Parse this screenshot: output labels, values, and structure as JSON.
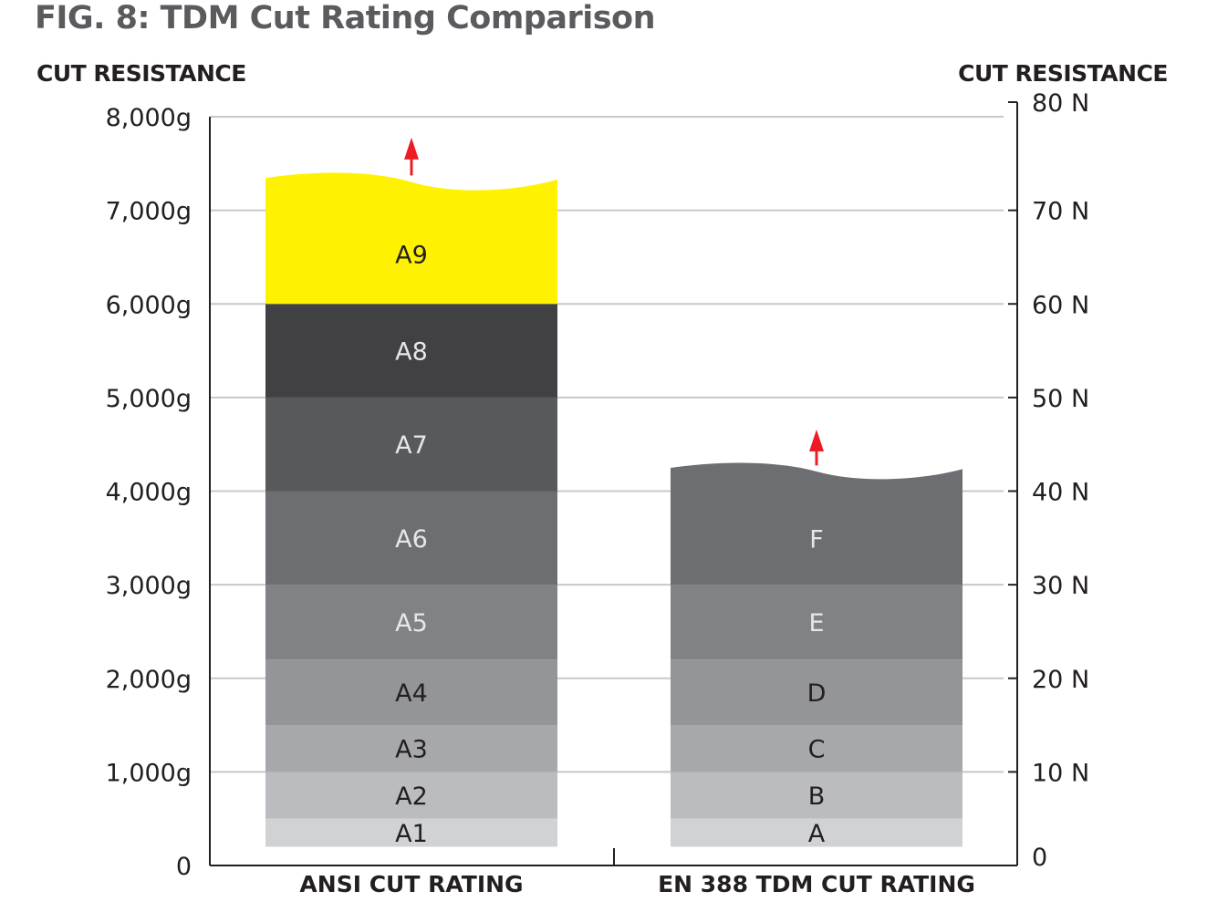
{
  "chart_data": {
    "type": "bar",
    "title": "FIG. 8: TDM Cut Rating Comparison",
    "left_axis": {
      "label": "CUT RESISTANCE",
      "unit": "g",
      "range": [
        0,
        8000
      ],
      "ticks": [
        0,
        1000,
        2000,
        3000,
        4000,
        5000,
        6000,
        7000,
        8000
      ],
      "tick_labels": [
        "0",
        "1,000g",
        "2,000g",
        "3,000g",
        "4,000g",
        "5,000g",
        "6,000g",
        "7,000g",
        "8,000g"
      ]
    },
    "right_axis": {
      "label": "CUT RESISTANCE",
      "unit": "N",
      "range": [
        0,
        80
      ],
      "ticks": [
        0,
        10,
        20,
        30,
        40,
        50,
        60,
        70,
        80
      ],
      "tick_labels": [
        "0",
        "10 N",
        "20 N",
        "30 N",
        "40 N",
        "50 N",
        "60 N",
        "70 N",
        "80 N"
      ]
    },
    "grid": true,
    "categories": [
      "ANSI CUT RATING",
      "EN 388 TDM CUT RATING"
    ],
    "stacks": [
      {
        "category": "ANSI CUT RATING",
        "axis": "left",
        "open_ended": true,
        "segments": [
          {
            "label": "A1",
            "from": 200,
            "to": 500,
            "color": "#d1d2d4",
            "text_color": "#231f20"
          },
          {
            "label": "A2",
            "from": 500,
            "to": 1000,
            "color": "#bbbcbf",
            "text_color": "#231f20"
          },
          {
            "label": "A3",
            "from": 1000,
            "to": 1500,
            "color": "#a7a8ab",
            "text_color": "#231f20"
          },
          {
            "label": "A4",
            "from": 1500,
            "to": 2200,
            "color": "#939598",
            "text_color": "#231f20"
          },
          {
            "label": "A5",
            "from": 2200,
            "to": 3000,
            "color": "#808285",
            "text_color": "#e6e7e8"
          },
          {
            "label": "A6",
            "from": 3000,
            "to": 4000,
            "color": "#6d6e71",
            "text_color": "#e6e7e8"
          },
          {
            "label": "A7",
            "from": 4000,
            "to": 5000,
            "color": "#58595b",
            "text_color": "#e6e7e8"
          },
          {
            "label": "A8",
            "from": 5000,
            "to": 6000,
            "color": "#414143",
            "text_color": "#e6e7e8"
          },
          {
            "label": "A9",
            "from": 6000,
            "to": 7400,
            "color": "#fff200",
            "text_color": "#231f20"
          }
        ]
      },
      {
        "category": "EN 388 TDM CUT RATING",
        "axis": "right",
        "open_ended": true,
        "segments": [
          {
            "label": "A",
            "from": 2,
            "to": 5,
            "color": "#d1d2d4",
            "text_color": "#231f20"
          },
          {
            "label": "B",
            "from": 5,
            "to": 10,
            "color": "#bbbcbf",
            "text_color": "#231f20"
          },
          {
            "label": "C",
            "from": 10,
            "to": 15,
            "color": "#a7a8ab",
            "text_color": "#231f20"
          },
          {
            "label": "D",
            "from": 15,
            "to": 22,
            "color": "#939598",
            "text_color": "#231f20"
          },
          {
            "label": "E",
            "from": 22,
            "to": 30,
            "color": "#808285",
            "text_color": "#e6e7e8"
          },
          {
            "label": "F",
            "from": 30,
            "to": 43,
            "color": "#6d6e71",
            "text_color": "#e6e7e8"
          }
        ]
      }
    ],
    "colors": {
      "grid": "#c7c8ca",
      "axis": "#231f20",
      "arrow": "#ed1c24"
    }
  }
}
